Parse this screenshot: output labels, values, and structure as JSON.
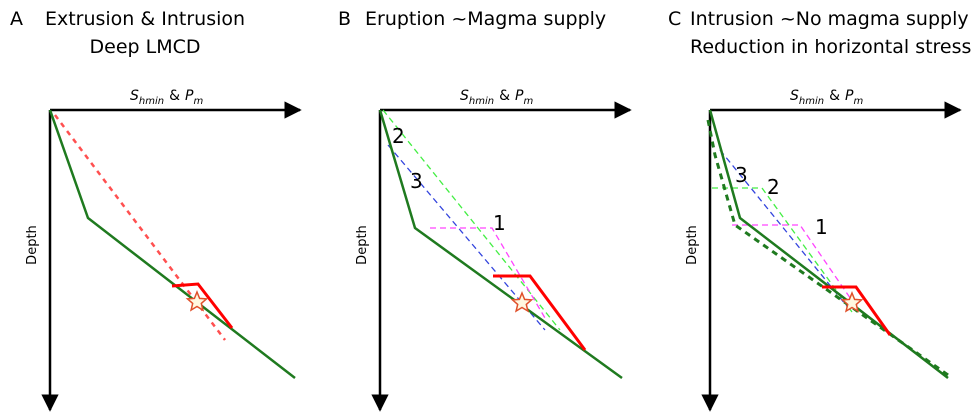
{
  "panels": [
    {
      "letter": "A",
      "title": [
        "Extrusion & Intrusion",
        "Deep LMCD"
      ],
      "x_axis": [
        "S",
        "hmin",
        "&",
        "P",
        "m"
      ],
      "y_axis": "Depth",
      "labels": []
    },
    {
      "letter": "B",
      "title": [
        "Eruption ~Magma supply"
      ],
      "x_axis": [
        "S",
        "hmin",
        "&",
        "P",
        "m"
      ],
      "y_axis": "Depth",
      "labels": [
        "2",
        "3",
        "1"
      ]
    },
    {
      "letter": "C",
      "title": [
        "Intrusion ~No magma supply",
        "Reduction in horizontal stress"
      ],
      "x_axis": [
        "S",
        "hmin",
        "&",
        "P",
        "m"
      ],
      "y_axis": "Depth",
      "labels": [
        "3",
        "2",
        "1"
      ]
    }
  ]
}
